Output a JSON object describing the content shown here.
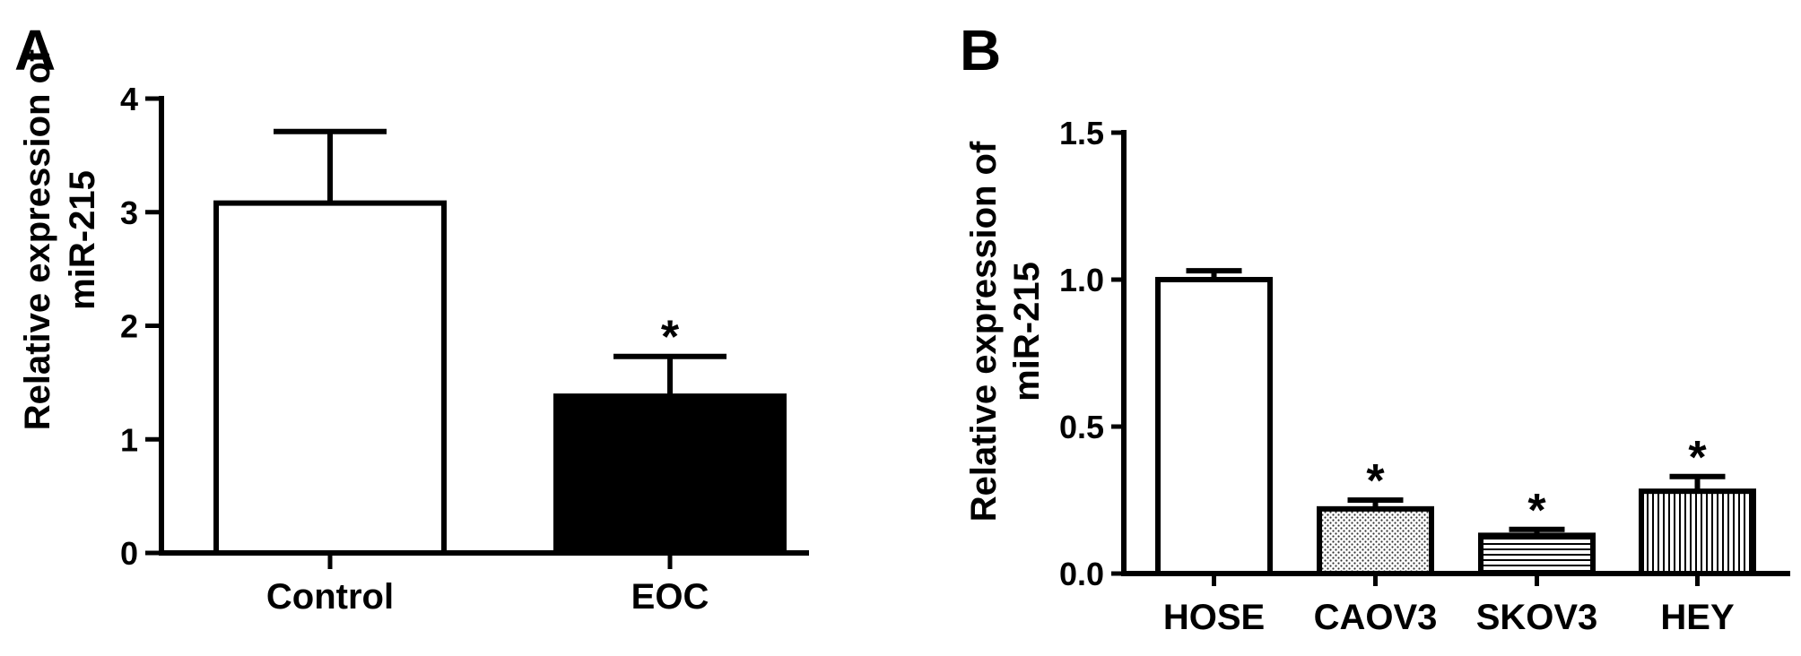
{
  "chart_data": [
    {
      "panel": "A",
      "type": "bar",
      "categories": [
        "Control",
        "EOC"
      ],
      "values": [
        3.08,
        1.38
      ],
      "errors": [
        0.63,
        0.35
      ],
      "significance": [
        "",
        "*"
      ],
      "fills": [
        "#ffffff",
        "#000000"
      ],
      "yticks": [
        "0",
        "1",
        "2",
        "3",
        "4"
      ],
      "ylabel": [
        "Relative expression of",
        "miR-215"
      ],
      "ylim": [
        0,
        4
      ]
    },
    {
      "panel": "B",
      "type": "bar",
      "categories": [
        "HOSE",
        "CAOV3",
        "SKOV3",
        "HEY"
      ],
      "values": [
        1.0,
        0.22,
        0.13,
        0.28
      ],
      "errors": [
        0.03,
        0.03,
        0.02,
        0.05
      ],
      "significance": [
        "",
        "*",
        "*",
        "*"
      ],
      "fills": [
        "white",
        "dots",
        "hlines",
        "vlines"
      ],
      "yticks": [
        "0.0",
        "0.5",
        "1.0",
        "1.5"
      ],
      "ylabel": [
        "Relative expression of",
        "miR-215"
      ],
      "ylim": [
        0,
        1.5
      ]
    }
  ]
}
